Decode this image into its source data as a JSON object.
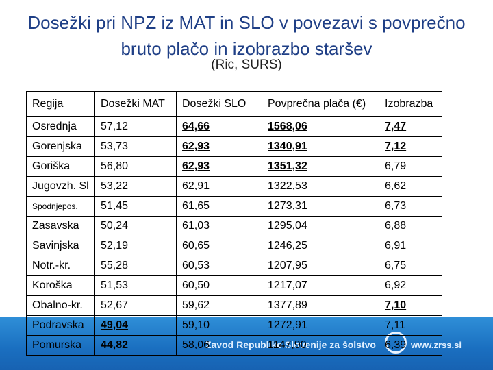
{
  "header": {
    "title": "Dosežki pri NPZ iz MAT in SLO v povezavi s povprečno bruto plačo in izobrazbo staršev",
    "subtitle": "(Ric, SURS)"
  },
  "table": {
    "columns": [
      "Regija",
      "Dosežki MAT",
      "Dosežki SLO",
      "Povprečna plača (€)",
      "Izobrazba"
    ],
    "rows": [
      [
        "Osrednja",
        "57,12",
        "64,66",
        "1568,06",
        "7,47"
      ],
      [
        "Gorenjska",
        "53,73",
        "62,93",
        "1340,91",
        "7,12"
      ],
      [
        "Goriška",
        "56,80",
        "62,93",
        "1351,32",
        "6,79"
      ],
      [
        "Jugovzh. Sl",
        "53,22",
        "62,91",
        "1322,53",
        "6,62"
      ],
      [
        "Spodnjepos.",
        "51,45",
        "61,65",
        "1273,31",
        "6,73"
      ],
      [
        "Zasavska",
        "50,24",
        "61,03",
        "1295,04",
        "6,88"
      ],
      [
        "Savinjska",
        "52,19",
        "60,65",
        "1246,25",
        "6,91"
      ],
      [
        "Notr.-kr.",
        "55,28",
        "60,53",
        "1207,95",
        "6,75"
      ],
      [
        "Koroška",
        "51,53",
        "60,50",
        "1217,07",
        "6,92"
      ],
      [
        "Obalno-kr.",
        "52,67",
        "59,62",
        "1377,89",
        "7,10"
      ],
      [
        "Podravska",
        "49,04",
        "59,10",
        "1272,91",
        "7,11"
      ],
      [
        "Pomurska",
        "44,82",
        "58,06",
        "1147,90",
        "6,39"
      ]
    ]
  },
  "footer": {
    "organization": "Zavod Republike Slovenije za šolstvo",
    "url": "www.zrss.si"
  }
}
